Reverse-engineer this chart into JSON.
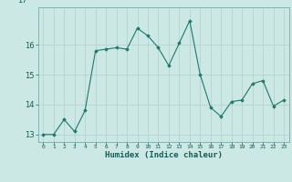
{
  "x": [
    0,
    1,
    2,
    3,
    4,
    5,
    6,
    7,
    8,
    9,
    10,
    11,
    12,
    13,
    14,
    15,
    16,
    17,
    18,
    19,
    20,
    21,
    22,
    23
  ],
  "y": [
    13.0,
    13.0,
    13.5,
    13.1,
    13.8,
    15.8,
    15.85,
    15.9,
    15.85,
    16.55,
    16.3,
    15.9,
    15.3,
    16.05,
    16.8,
    15.0,
    13.9,
    13.6,
    14.1,
    14.15,
    14.7,
    14.8,
    13.95,
    14.15
  ],
  "ylim": [
    12.75,
    17.25
  ],
  "yticks": [
    13,
    14,
    15,
    16
  ],
  "xlabel": "Humidex (Indice chaleur)",
  "line_color": "#1a7a6e",
  "marker_color": "#1a7a6e",
  "bg_color": "#cce8e4",
  "grid_color": "#b0d0cc",
  "figsize": [
    3.2,
    2.0
  ],
  "dpi": 100
}
